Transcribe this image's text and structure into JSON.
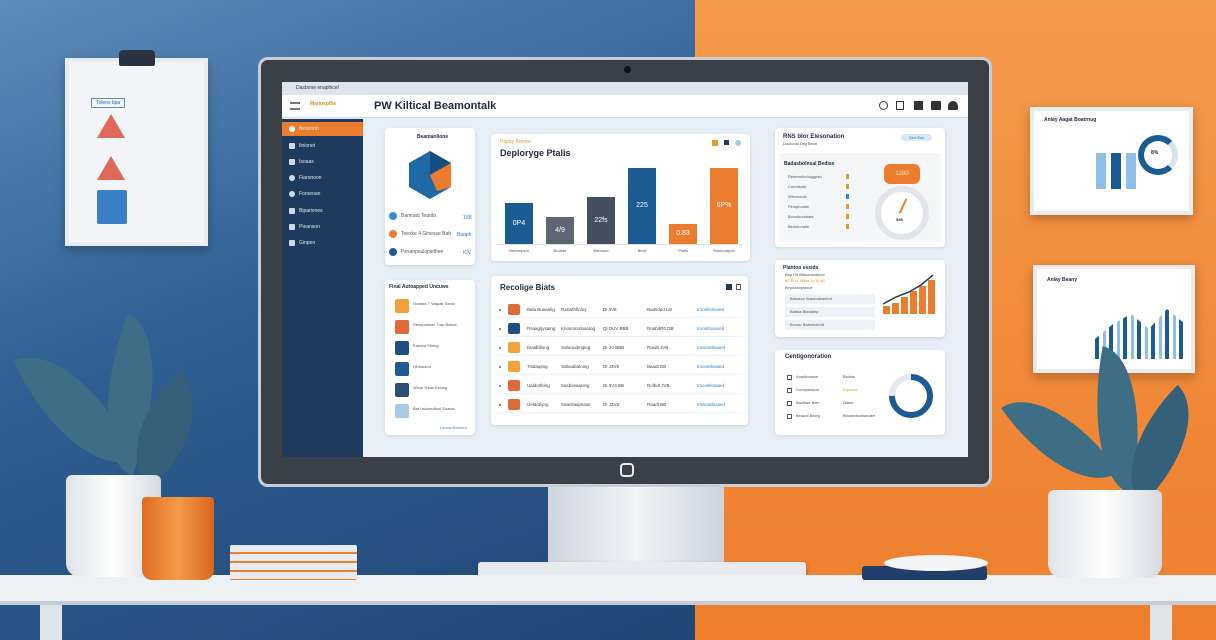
{
  "app": {
    "title": "PW Kiltical Beamontalk",
    "brand": "Dasbone enaphicel",
    "logo_text": "Manosplfie"
  },
  "sidebar": {
    "items": [
      {
        "label": "Besonon",
        "active": true
      },
      {
        "label": "Iinionet"
      },
      {
        "label": "Isoaas"
      },
      {
        "label": "Fiaronoon"
      },
      {
        "label": "Foroeoan"
      },
      {
        "label": "Bipariones"
      },
      {
        "label": "Pieanson"
      },
      {
        "label": "Ginpen"
      }
    ]
  },
  "donut_card": {
    "title": "Beamanlione",
    "legend": [
      {
        "label": "Bamoad Teardo",
        "value": "15B"
      },
      {
        "label": "Teeske 4 Ginesse Baberan",
        "value": "Baaph"
      },
      {
        "label": "Pesanpsuloplelhee",
        "value": "KIV"
      }
    ]
  },
  "deploy_chart": {
    "title": "Deploryge Ptalis",
    "subtitle": "Papoy Bonew",
    "categories": [
      "Banesipsul",
      "Buclise",
      "Barosed",
      "Bivld",
      "Pialis",
      "Bosnorapon"
    ],
    "values": [
      0.54,
      0.36,
      0.62,
      1.0,
      0.26,
      1.0
    ],
    "labels": [
      "0P4",
      "4/9",
      "22fs",
      "225",
      "0.83",
      "6P%"
    ],
    "colors": [
      "#1b5a92",
      "#5d6673",
      "#434e5e",
      "#1b5a92",
      "#ec7d2f",
      "#ec7d2f"
    ]
  },
  "list_card": {
    "title": "Final Autoapped Uncuws",
    "items": [
      "Voataur 7 Wapali Soeal",
      "Resnparlow/ Trap Bsloat",
      "Fasxed Sfinng",
      "HDstoaod",
      "Wioar Rsas Kening",
      "Bat Uslonedluol Soatan"
    ],
    "footer": "Leoow Broloed",
    "colors": [
      "#f2a23a",
      "#e0693a",
      "#1e4f80",
      "#1f5a92",
      "#2a4e74",
      "#a9cbe9"
    ]
  },
  "table_card": {
    "title": "Recolige Biats",
    "rows": [
      {
        "name": "Bala Bueanlig",
        "type": "Raswthfinloy",
        "date": "Di 3V8",
        "ref": "Budsdpd Lilt",
        "link": "Iroonllonsoed",
        "color": "#e0693a"
      },
      {
        "name": "Rsaag/jysaing",
        "type": "Knosomrdoanlog",
        "date": "Ql DUV BBB",
        "ref": "RoabdR0 DB",
        "link": "Iroontlosaned",
        "color": "#1e4f80"
      },
      {
        "name": "Dialdbfisng",
        "type": "Subroudmipog",
        "date": "DI JV BBB",
        "ref": "Rasdt JVB",
        "link": "Irowoatlosaed",
        "color": "#f2a23a"
      },
      {
        "name": "Tisdaqsng",
        "type": "Sabuabafoing",
        "date": "DI J3V8",
        "ref": "Baadt DB",
        "link": "Irsooetlosaed",
        "color": "#f2a23a"
      },
      {
        "name": "Ualdorlbing",
        "type": "Sasbseaaning",
        "date": "DI 3V3 BB",
        "ref": "Rolhdt JVB",
        "link": "Irscoetlosaed",
        "color": "#e0693a"
      },
      {
        "name": "Ueld/d/yng",
        "type": "Sateslaajmase",
        "date": "DI J3V8",
        "ref": "Raadt BB",
        "link": "Irowoatlosaed",
        "color": "#e0693a"
      }
    ]
  },
  "status_card": {
    "title": "RNS blor Elesonation",
    "subtitle": "Duoiohal Dlig Benn",
    "button": "Selr Bes",
    "section": "Badasbolnsal Bedise",
    "items": [
      "Retamnlortloggpsd",
      "Comaboty",
      "Wiesnoole",
      "Pinopboatle",
      "Bonolsumbate",
      "Bedolonatle"
    ],
    "gauge_badge": "1280",
    "gauge_value": "598",
    "gauge_level": 0.4
  },
  "trend_card": {
    "title": "Plantoo essids",
    "subtitle": "Bap Rlt Btdsanlsabunt",
    "highlight": "60 EDE Wtha 4s 6I 4E",
    "note": "Bepdasbpsiooe",
    "rows": [
      "Batsaoa Iloasbaleanbat",
      "Batloa Biocsliep",
      "Broasr Batestolentt"
    ],
    "bars": [
      0.2,
      0.3,
      0.45,
      0.6,
      0.75,
      0.9
    ]
  },
  "config_card": {
    "title": "Centigonoration",
    "items": [
      {
        "label": "Ampibeanse",
        "status": "Bsdlse"
      },
      {
        "label": "Corepdasbor",
        "status": "Dipsnae"
      },
      {
        "label": "Bauitlae Bien",
        "status": "Dlaee"
      },
      {
        "label": "Beaadl Beleg",
        "status": "Bhosedtonlsbraee"
      }
    ],
    "donut_fraction": 0.75
  },
  "wall": {
    "clip_label": "Toleos bpa",
    "frame1_title": "Anlay Aagat Boatrnug",
    "frame1_value": "8%",
    "frame2_title": "Anlay Beany"
  },
  "colors": {
    "orange": "#ec7d2f",
    "navy": "#1b3a5e",
    "blue": "#1b5a92"
  }
}
